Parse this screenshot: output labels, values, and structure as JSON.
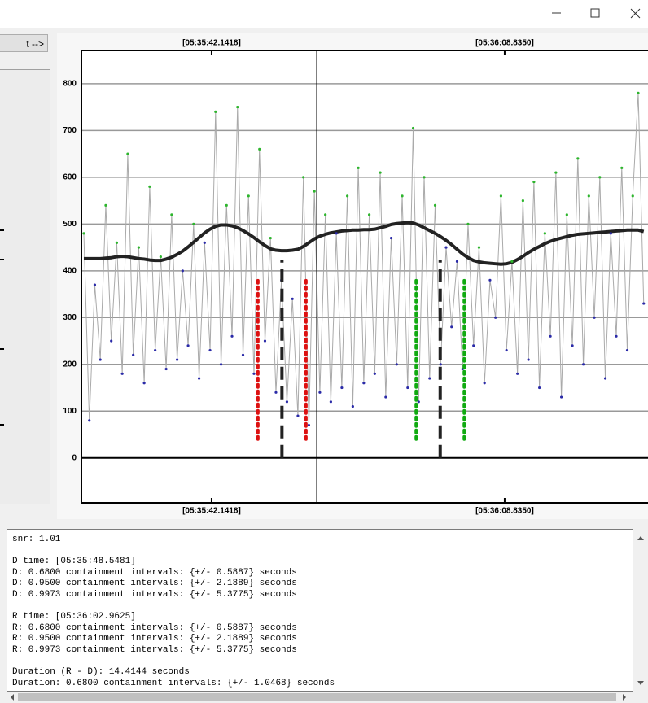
{
  "toolbar": {
    "button": "t -->"
  },
  "chart_data": {
    "type": "line",
    "top_xticks": [
      {
        "value": 42.1418,
        "label": "[05:35:42.1418]"
      },
      {
        "value": 68.835,
        "label": "[05:36:08.8350]"
      }
    ],
    "xticks": [
      {
        "value": 42.1418,
        "label": "[05:35:42.1418]"
      },
      {
        "value": 68.835,
        "label": "[05:36:08.8350]"
      }
    ],
    "xlim": [
      30.28,
      81.89
    ],
    "ylim": [
      -96,
      871
    ],
    "yticks": [
      0,
      100,
      200,
      300,
      400,
      500,
      600,
      700,
      800
    ],
    "grid": true,
    "cursor_x": 51.71,
    "x": [
      30.5,
      31,
      31.5,
      32,
      32.5,
      33,
      33.5,
      34,
      34.5,
      35,
      35.5,
      36,
      36.5,
      37,
      37.5,
      38,
      38.5,
      39,
      39.5,
      40,
      40.5,
      41,
      41.5,
      42,
      42.5,
      43,
      43.5,
      44,
      44.5,
      45,
      45.5,
      46,
      46.5,
      47,
      47.5,
      48,
      48.5,
      49,
      49.5,
      50,
      50.5,
      51,
      51.5,
      52,
      52.5,
      53,
      53.5,
      54,
      54.5,
      55,
      55.5,
      56,
      56.5,
      57,
      57.5,
      58,
      58.5,
      59,
      59.5,
      60,
      60.5,
      61,
      61.5,
      62,
      62.5,
      63,
      63.5,
      64,
      64.5,
      65,
      65.5,
      66,
      66.5,
      67,
      67.5,
      68,
      68.5,
      69,
      69.5,
      70,
      70.5,
      71,
      71.5,
      72,
      72.5,
      73,
      73.5,
      74,
      74.5,
      75,
      75.5,
      76,
      76.5,
      77,
      77.5,
      78,
      78.5,
      79,
      79.5,
      80,
      80.5,
      81,
      81.5
    ],
    "series": [
      {
        "color": "#aaaaaa",
        "marker_colors": [
          "#2db52d",
          "#2a2aa8"
        ],
        "values": [
          480,
          80,
          370,
          210,
          540,
          250,
          460,
          180,
          650,
          220,
          450,
          160,
          580,
          230,
          430,
          190,
          520,
          210,
          400,
          240,
          500,
          170,
          460,
          230,
          740,
          200,
          540,
          260,
          750,
          220,
          560,
          180,
          660,
          250,
          470,
          140,
          380,
          120,
          340,
          90,
          600,
          70,
          570,
          140,
          520,
          120,
          480,
          150,
          560,
          110,
          620,
          160,
          520,
          180,
          610,
          130,
          470,
          200,
          560,
          150,
          705,
          120,
          600,
          170,
          540,
          200,
          450,
          280,
          420,
          190,
          500,
          240,
          450,
          160,
          380,
          300,
          560,
          230,
          420,
          180,
          550,
          210,
          590,
          150,
          480,
          260,
          610,
          130,
          520,
          240,
          640,
          200,
          560,
          300,
          600,
          170,
          480,
          260,
          620,
          230,
          560,
          780,
          330
        ]
      },
      {
        "color": "#222222",
        "values": [
          426,
          426,
          426,
          426,
          427,
          428,
          430,
          431,
          430,
          428,
          426,
          425,
          423,
          422,
          422,
          425,
          429,
          435,
          442,
          451,
          461,
          471,
          481,
          489,
          495,
          498,
          498,
          496,
          492,
          486,
          479,
          471,
          462,
          454,
          447,
          444,
          443,
          443,
          444,
          446,
          452,
          460,
          468,
          474,
          478,
          481,
          483,
          485,
          486,
          487,
          487,
          488,
          488,
          489,
          492,
          495,
          499,
          501,
          502,
          503,
          502,
          498,
          492,
          486,
          480,
          473,
          465,
          456,
          446,
          436,
          428,
          422,
          419,
          417,
          416,
          415,
          414,
          415,
          418,
          424,
          431,
          439,
          446,
          452,
          458,
          463,
          467,
          470,
          473,
          476,
          478,
          479,
          480,
          481,
          482,
          483,
          484,
          485,
          486,
          487,
          487,
          487,
          484
        ]
      }
    ],
    "markers": [
      {
        "x": 46.3592,
        "y": [
          40,
          379
        ],
        "color": "#dd1111",
        "style": "dotted"
      },
      {
        "x": 48.5481,
        "y": [
          0,
          423
        ],
        "color": "#222222",
        "style": "dashed"
      },
      {
        "x": 50.737,
        "y": [
          40,
          379
        ],
        "color": "#dd1111",
        "style": "dotted"
      },
      {
        "x": 60.7736,
        "y": [
          40,
          379
        ],
        "color": "#11aa11",
        "style": "dotted"
      },
      {
        "x": 62.9625,
        "y": [
          0,
          423
        ],
        "color": "#222222",
        "style": "dashed"
      },
      {
        "x": 65.1514,
        "y": [
          40,
          379
        ],
        "color": "#11aa11",
        "style": "dotted"
      }
    ]
  },
  "log": {
    "lines": [
      "snr: 1.01",
      "",
      "D time: [05:35:48.5481]",
      "D: 0.6800 containment intervals: {+/- 0.5887} seconds",
      "D: 0.9500 containment intervals: {+/- 2.1889} seconds",
      "D: 0.9973 containment intervals: {+/- 5.3775} seconds",
      "",
      "R time: [05:36:02.9625]",
      "R: 0.6800 containment intervals: {+/- 0.5887} seconds",
      "R: 0.9500 containment intervals: {+/- 2.1889} seconds",
      "R: 0.9973 containment intervals: {+/- 5.3775} seconds",
      "",
      "Duration (R - D): 14.4144 seconds",
      "Duration: 0.6800 containment intervals: {+/- 1.0468} seconds"
    ]
  }
}
